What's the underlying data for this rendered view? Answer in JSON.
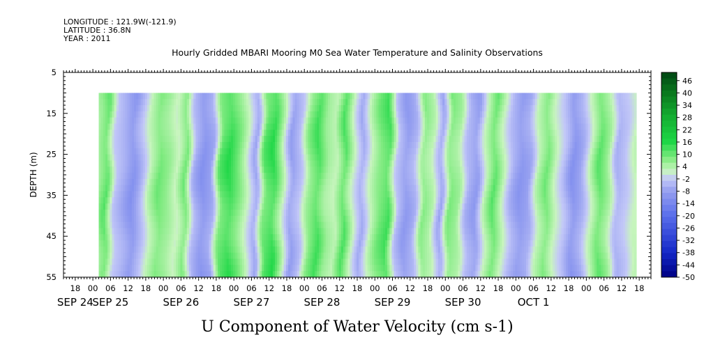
{
  "header": {
    "longitude": "LONGITUDE : 121.9W(-121.9)",
    "latitude": "LATITUDE : 36.8N",
    "year": "YEAR : 2011"
  },
  "chart_data": {
    "type": "heatmap",
    "title": "Hourly Gridded MBARI Mooring M0 Sea Water Temperature and Salinity Observations",
    "xlabel": "U Component of Water Velocity (cm s-1)",
    "ylabel": "DEPTH (m)",
    "ylim": [
      5,
      55
    ],
    "y_inverted": true,
    "y_ticks": [
      5,
      15,
      25,
      35,
      45,
      55
    ],
    "y_tick_labels": [
      "5",
      "15",
      "25",
      "35",
      "45",
      "55"
    ],
    "x_range_hours": [
      -10,
      190
    ],
    "x_origin": "SEP 24 00",
    "x_tick_hours": [
      -6,
      0,
      6,
      12,
      18,
      24,
      30,
      36,
      42,
      48,
      54,
      60,
      66,
      72,
      78,
      84,
      90,
      96,
      102,
      108,
      114,
      120,
      126,
      132,
      138,
      144,
      150,
      156,
      162,
      168,
      174,
      180,
      186
    ],
    "x_tick_labels": [
      "18",
      "00",
      "06",
      "12",
      "18",
      "00",
      "06",
      "12",
      "18",
      "00",
      "06",
      "12",
      "18",
      "00",
      "06",
      "12",
      "18",
      "00",
      "06",
      "12",
      "18",
      "00",
      "06",
      "12",
      "18",
      "00",
      "06",
      "12",
      "18",
      "00",
      "06",
      "12",
      "18"
    ],
    "date_labels": [
      {
        "hour": -6,
        "text": "SEP 24"
      },
      {
        "hour": 6,
        "text": "SEP 25"
      },
      {
        "hour": 30,
        "text": "SEP 26"
      },
      {
        "hour": 54,
        "text": "SEP 27"
      },
      {
        "hour": 78,
        "text": "SEP 28"
      },
      {
        "hour": 102,
        "text": "SEP 29"
      },
      {
        "hour": 126,
        "text": "SEP 30"
      },
      {
        "hour": 150,
        "text": "OCT  1"
      }
    ],
    "data_depth_range": [
      10,
      55
    ],
    "data_hour_range": [
      2,
      185
    ],
    "colorbar": {
      "min": -50,
      "max": 50,
      "labels": [
        "46",
        "40",
        "34",
        "28",
        "22",
        "16",
        "10",
        "4",
        "-2",
        "-8",
        "-14",
        "-20",
        "-26",
        "-32",
        "-38",
        "-44",
        "-50"
      ]
    },
    "bands": [
      {
        "t": 2,
        "v": 6
      },
      {
        "t": 5,
        "v": 12
      },
      {
        "t": 8,
        "v": -3
      },
      {
        "t": 11,
        "v": -7
      },
      {
        "t": 14,
        "v": -12
      },
      {
        "t": 17,
        "v": -5
      },
      {
        "t": 20,
        "v": 4
      },
      {
        "t": 23,
        "v": 10
      },
      {
        "t": 26,
        "v": 7
      },
      {
        "t": 29,
        "v": 2
      },
      {
        "t": 32,
        "v": 10
      },
      {
        "t": 35,
        "v": -6
      },
      {
        "t": 38,
        "v": -12
      },
      {
        "t": 41,
        "v": -8
      },
      {
        "t": 44,
        "v": 12
      },
      {
        "t": 47,
        "v": 16
      },
      {
        "t": 50,
        "v": 10
      },
      {
        "t": 53,
        "v": 2
      },
      {
        "t": 56,
        "v": -8
      },
      {
        "t": 59,
        "v": 12
      },
      {
        "t": 62,
        "v": 16
      },
      {
        "t": 65,
        "v": 4
      },
      {
        "t": 68,
        "v": -9
      },
      {
        "t": 71,
        "v": -4
      },
      {
        "t": 74,
        "v": 8
      },
      {
        "t": 77,
        "v": 14
      },
      {
        "t": 80,
        "v": 6
      },
      {
        "t": 83,
        "v": 3
      },
      {
        "t": 86,
        "v": 13
      },
      {
        "t": 89,
        "v": 2
      },
      {
        "t": 92,
        "v": -7
      },
      {
        "t": 95,
        "v": 3
      },
      {
        "t": 98,
        "v": 10
      },
      {
        "t": 101,
        "v": 14
      },
      {
        "t": 104,
        "v": -4
      },
      {
        "t": 107,
        "v": -10
      },
      {
        "t": 110,
        "v": -6
      },
      {
        "t": 113,
        "v": 8
      },
      {
        "t": 116,
        "v": 4
      },
      {
        "t": 119,
        "v": -8
      },
      {
        "t": 122,
        "v": 9
      },
      {
        "t": 125,
        "v": 6
      },
      {
        "t": 128,
        "v": -6
      },
      {
        "t": 131,
        "v": -10
      },
      {
        "t": 134,
        "v": 3
      },
      {
        "t": 137,
        "v": 12
      },
      {
        "t": 140,
        "v": 3
      },
      {
        "t": 143,
        "v": -6
      },
      {
        "t": 146,
        "v": -11
      },
      {
        "t": 149,
        "v": -8
      },
      {
        "t": 152,
        "v": 4
      },
      {
        "t": 155,
        "v": 10
      },
      {
        "t": 158,
        "v": 2
      },
      {
        "t": 161,
        "v": -4
      },
      {
        "t": 164,
        "v": -12
      },
      {
        "t": 167,
        "v": -7
      },
      {
        "t": 170,
        "v": 3
      },
      {
        "t": 173,
        "v": 12
      },
      {
        "t": 176,
        "v": 6
      },
      {
        "t": 179,
        "v": -6
      },
      {
        "t": 182,
        "v": -3
      },
      {
        "t": 185,
        "v": 3
      }
    ]
  }
}
